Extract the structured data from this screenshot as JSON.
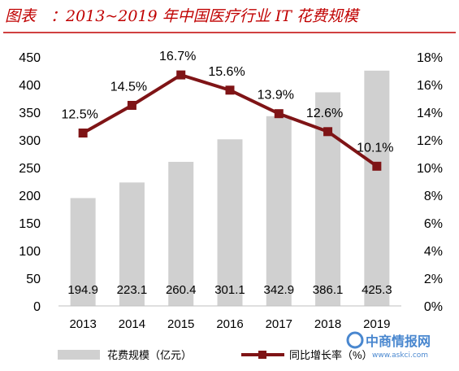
{
  "title": {
    "prefix": "图表",
    "main": "：2013~2019 年中国医疗行业 IT 花费规模"
  },
  "colors": {
    "title": "#c00000",
    "bar": "#d0d0d0",
    "line": "#7f1416",
    "rule": "#c00000"
  },
  "legend": {
    "bar_label": "花费规模（亿元）",
    "line_label": "同比增长率（%）"
  },
  "watermark": {
    "logo_text": "中商情报网",
    "url": "www.askci.com"
  },
  "chart_data": {
    "type": "bar",
    "categories": [
      "2013",
      "2014",
      "2015",
      "2016",
      "2017",
      "2018",
      "2019"
    ],
    "series": [
      {
        "name": "花费规模（亿元）",
        "type": "bar",
        "axis": "left",
        "values": [
          194.9,
          223.1,
          260.4,
          301.1,
          342.9,
          386.1,
          425.3
        ],
        "labels": [
          "194.9",
          "223.1",
          "260.4",
          "301.1",
          "342.9",
          "386.1",
          "425.3"
        ]
      },
      {
        "name": "同比增长率（%）",
        "type": "line",
        "axis": "right",
        "values": [
          12.5,
          14.5,
          16.7,
          15.6,
          13.9,
          12.6,
          10.1
        ],
        "labels": [
          "12.5%",
          "14.5%",
          "16.7%",
          "15.6%",
          "13.9%",
          "12.6%",
          "10.1%"
        ]
      }
    ],
    "y_left": {
      "ylim": [
        0,
        450
      ],
      "ticks": [
        0,
        50,
        100,
        150,
        200,
        250,
        300,
        350,
        400,
        450
      ]
    },
    "y_right": {
      "ylim": [
        0,
        18
      ],
      "ticks": [
        0,
        2,
        4,
        6,
        8,
        10,
        12,
        14,
        16,
        18
      ],
      "tick_labels": [
        "0%",
        "2%",
        "4%",
        "6%",
        "8%",
        "10%",
        "12%",
        "14%",
        "16%",
        "18%"
      ]
    },
    "grid": false,
    "legend_position": "bottom"
  }
}
